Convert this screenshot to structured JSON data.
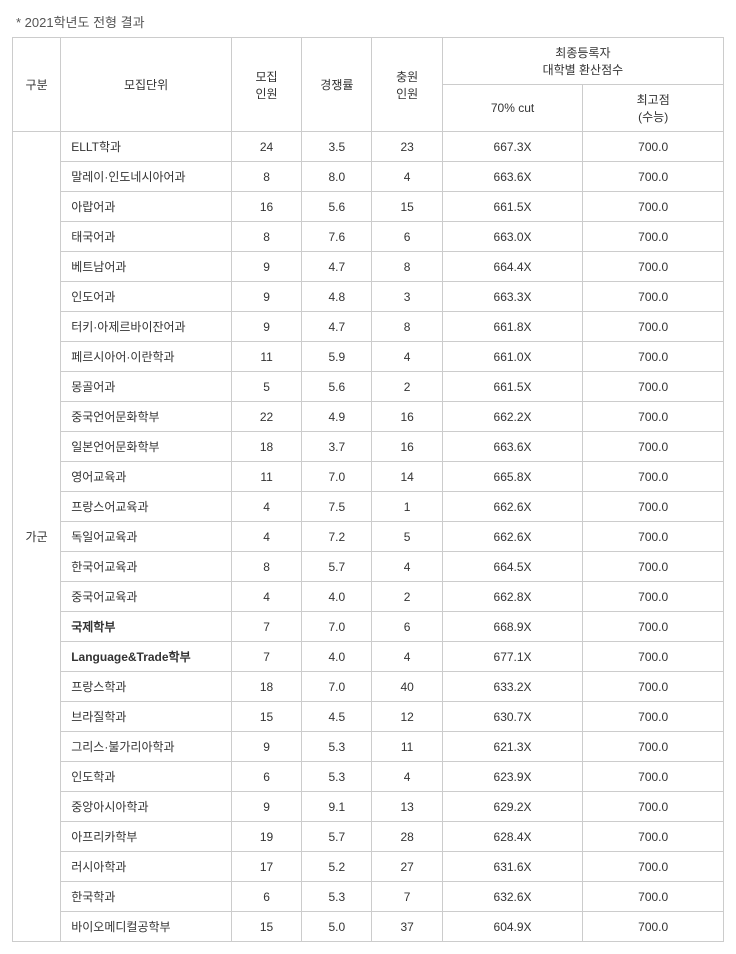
{
  "title": "* 2021학년도 전형 결과",
  "headers": {
    "gubun": "구분",
    "dept": "모집단위",
    "recruit": "모집\n인원",
    "ratio": "경쟁률",
    "add": "충원\n인원",
    "finalGroup": "최종등록자\n대학별 환산점수",
    "cut70": "70% cut",
    "max": "최고점\n(수능)"
  },
  "groupLabel": "가군",
  "boldDepartments": [
    "국제학부",
    "Language&Trade학부"
  ],
  "rows": [
    {
      "dept": "ELLT학과",
      "recruit": "24",
      "ratio": "3.5",
      "add": "23",
      "cut": "667.3X",
      "max": "700.0"
    },
    {
      "dept": "말레이·인도네시아어과",
      "recruit": "8",
      "ratio": "8.0",
      "add": "4",
      "cut": "663.6X",
      "max": "700.0"
    },
    {
      "dept": "아랍어과",
      "recruit": "16",
      "ratio": "5.6",
      "add": "15",
      "cut": "661.5X",
      "max": "700.0"
    },
    {
      "dept": "태국어과",
      "recruit": "8",
      "ratio": "7.6",
      "add": "6",
      "cut": "663.0X",
      "max": "700.0"
    },
    {
      "dept": "베트남어과",
      "recruit": "9",
      "ratio": "4.7",
      "add": "8",
      "cut": "664.4X",
      "max": "700.0"
    },
    {
      "dept": "인도어과",
      "recruit": "9",
      "ratio": "4.8",
      "add": "3",
      "cut": "663.3X",
      "max": "700.0"
    },
    {
      "dept": "터키·아제르바이잔어과",
      "recruit": "9",
      "ratio": "4.7",
      "add": "8",
      "cut": "661.8X",
      "max": "700.0"
    },
    {
      "dept": "페르시아어·이란학과",
      "recruit": "11",
      "ratio": "5.9",
      "add": "4",
      "cut": "661.0X",
      "max": "700.0"
    },
    {
      "dept": "몽골어과",
      "recruit": "5",
      "ratio": "5.6",
      "add": "2",
      "cut": "661.5X",
      "max": "700.0"
    },
    {
      "dept": "중국언어문화학부",
      "recruit": "22",
      "ratio": "4.9",
      "add": "16",
      "cut": "662.2X",
      "max": "700.0"
    },
    {
      "dept": "일본언어문화학부",
      "recruit": "18",
      "ratio": "3.7",
      "add": "16",
      "cut": "663.6X",
      "max": "700.0"
    },
    {
      "dept": "영어교육과",
      "recruit": "11",
      "ratio": "7.0",
      "add": "14",
      "cut": "665.8X",
      "max": "700.0"
    },
    {
      "dept": "프랑스어교육과",
      "recruit": "4",
      "ratio": "7.5",
      "add": "1",
      "cut": "662.6X",
      "max": "700.0"
    },
    {
      "dept": "독일어교육과",
      "recruit": "4",
      "ratio": "7.2",
      "add": "5",
      "cut": "662.6X",
      "max": "700.0"
    },
    {
      "dept": "한국어교육과",
      "recruit": "8",
      "ratio": "5.7",
      "add": "4",
      "cut": "664.5X",
      "max": "700.0"
    },
    {
      "dept": "중국어교육과",
      "recruit": "4",
      "ratio": "4.0",
      "add": "2",
      "cut": "662.8X",
      "max": "700.0"
    },
    {
      "dept": "국제학부",
      "recruit": "7",
      "ratio": "7.0",
      "add": "6",
      "cut": "668.9X",
      "max": "700.0"
    },
    {
      "dept": "Language&Trade학부",
      "recruit": "7",
      "ratio": "4.0",
      "add": "4",
      "cut": "677.1X",
      "max": "700.0"
    },
    {
      "dept": "프랑스학과",
      "recruit": "18",
      "ratio": "7.0",
      "add": "40",
      "cut": "633.2X",
      "max": "700.0"
    },
    {
      "dept": "브라질학과",
      "recruit": "15",
      "ratio": "4.5",
      "add": "12",
      "cut": "630.7X",
      "max": "700.0"
    },
    {
      "dept": "그리스·불가리아학과",
      "recruit": "9",
      "ratio": "5.3",
      "add": "11",
      "cut": "621.3X",
      "max": "700.0"
    },
    {
      "dept": "인도학과",
      "recruit": "6",
      "ratio": "5.3",
      "add": "4",
      "cut": "623.9X",
      "max": "700.0"
    },
    {
      "dept": "중앙아시아학과",
      "recruit": "9",
      "ratio": "9.1",
      "add": "13",
      "cut": "629.2X",
      "max": "700.0"
    },
    {
      "dept": "아프리카학부",
      "recruit": "19",
      "ratio": "5.7",
      "add": "28",
      "cut": "628.4X",
      "max": "700.0"
    },
    {
      "dept": "러시아학과",
      "recruit": "17",
      "ratio": "5.2",
      "add": "27",
      "cut": "631.6X",
      "max": "700.0"
    },
    {
      "dept": "한국학과",
      "recruit": "6",
      "ratio": "5.3",
      "add": "7",
      "cut": "632.6X",
      "max": "700.0"
    },
    {
      "dept": "바이오메디컬공학부",
      "recruit": "15",
      "ratio": "5.0",
      "add": "37",
      "cut": "604.9X",
      "max": "700.0"
    }
  ]
}
